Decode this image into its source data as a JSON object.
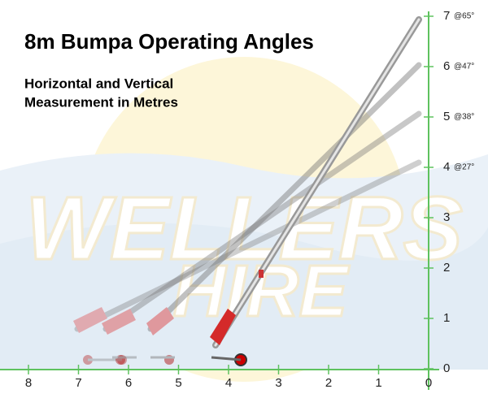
{
  "header": {
    "title": "8m Bumpa Operating Angles",
    "subtitle_lines": [
      "Horizontal and Vertical",
      "Measurement in Metres"
    ]
  },
  "horizontal_scale": [
    "8",
    "7",
    "6",
    "5",
    "4",
    "3",
    "2",
    "1",
    "0"
  ],
  "vertical_scale": [
    "7",
    "6",
    "5",
    "4",
    "3",
    "2",
    "1",
    "0"
  ],
  "angle_labels": [
    "@65°",
    "@47°",
    "@38°",
    "@27°"
  ],
  "watermark": [
    "WELLERS",
    "HIRE"
  ]
}
